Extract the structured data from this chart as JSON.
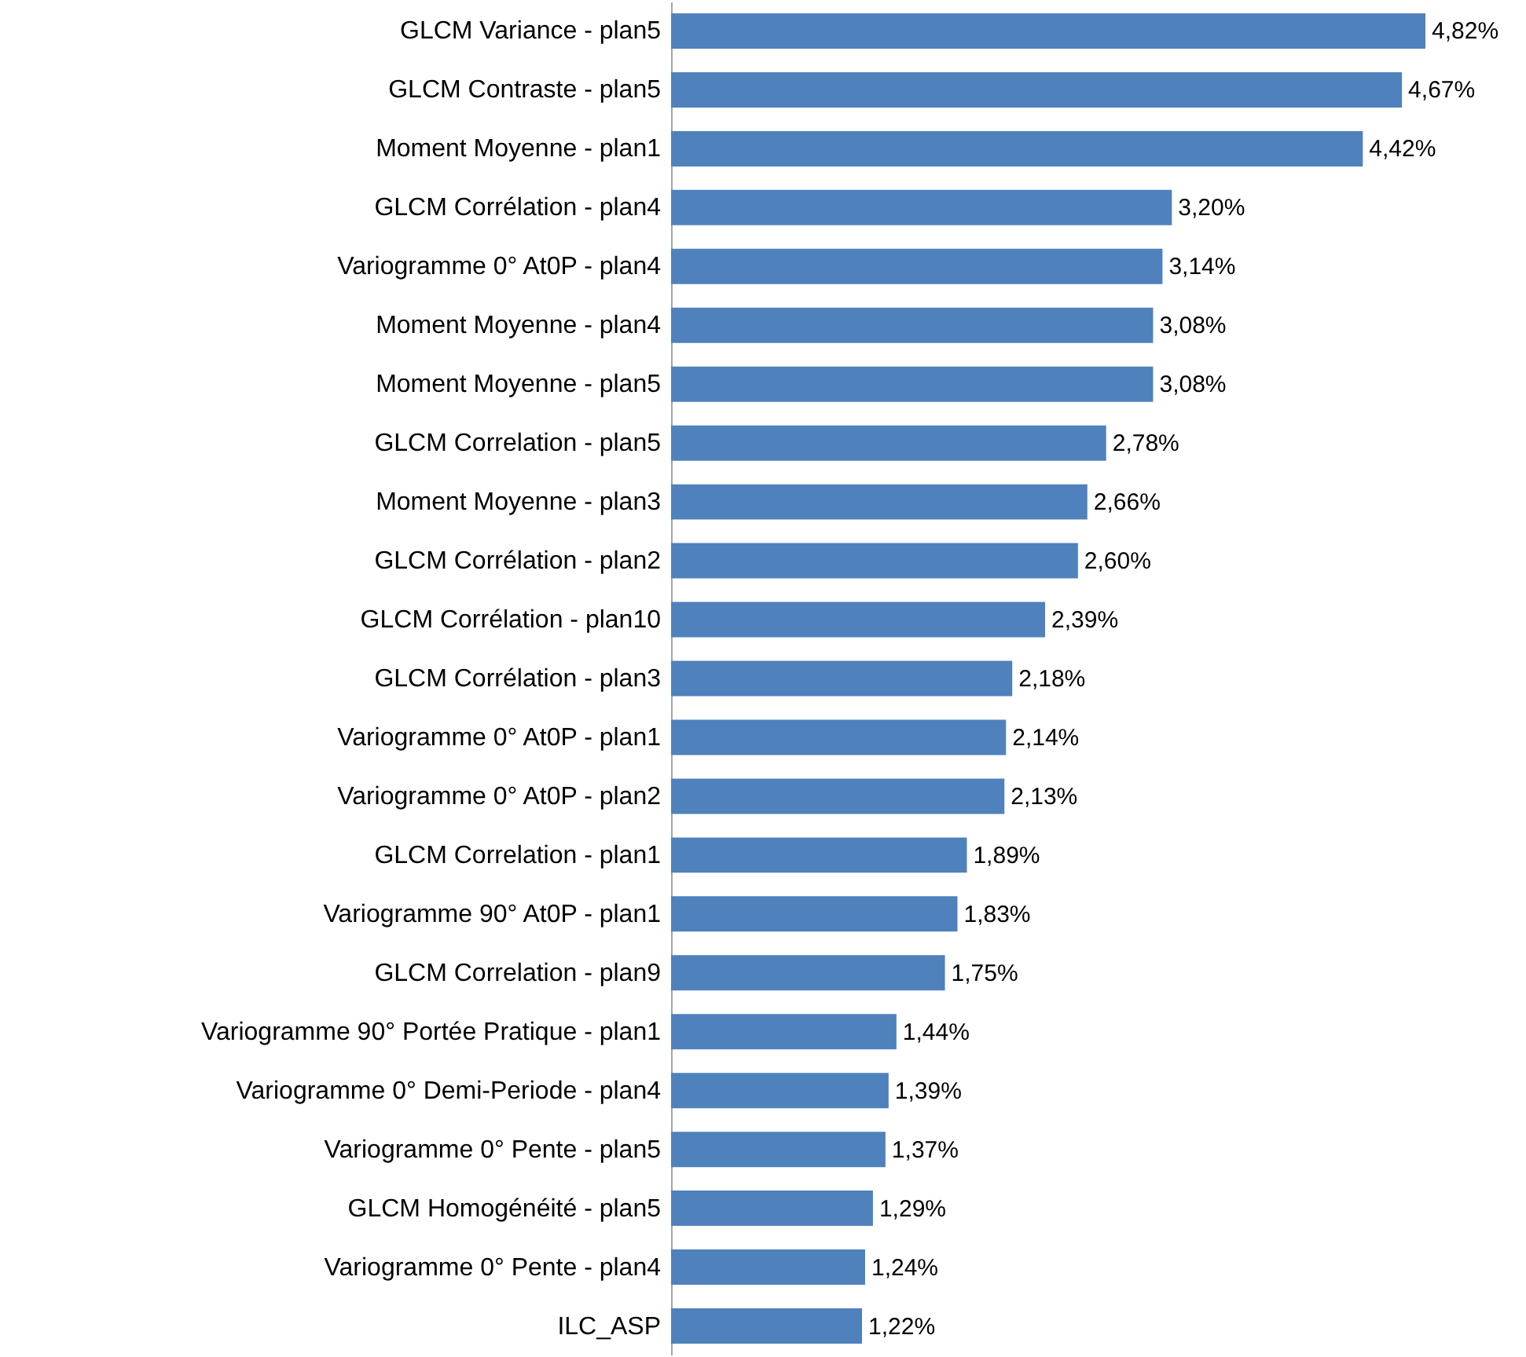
{
  "chart_data": {
    "type": "bar",
    "orientation": "horizontal",
    "color": "#4f81bd",
    "categories": [
      "GLCM Variance - plan5",
      "GLCM Contraste - plan5",
      "Moment Moyenne - plan1",
      "GLCM Corrélation - plan4",
      "Variogramme 0° At0P - plan4",
      "Moment Moyenne - plan4",
      "Moment Moyenne - plan5",
      "GLCM Correlation - plan5",
      "Moment Moyenne - plan3",
      "GLCM Corrélation - plan2",
      "GLCM Corrélation - plan10",
      "GLCM Corrélation - plan3",
      "Variogramme 0° At0P - plan1",
      "Variogramme 0° At0P - plan2",
      "GLCM Correlation - plan1",
      "Variogramme 90° At0P - plan1",
      "GLCM Correlation - plan9",
      "Variogramme 90° Portée Pratique - plan1",
      "Variogramme 0° Demi-Periode - plan4",
      "Variogramme 0° Pente - plan5",
      "GLCM Homogénéité - plan5",
      "Variogramme 0° Pente - plan4",
      "ILC_ASP"
    ],
    "values": [
      4.82,
      4.67,
      4.42,
      3.2,
      3.14,
      3.08,
      3.08,
      2.78,
      2.66,
      2.6,
      2.39,
      2.18,
      2.14,
      2.13,
      1.89,
      1.83,
      1.75,
      1.44,
      1.39,
      1.37,
      1.29,
      1.24,
      1.22
    ],
    "value_labels": [
      "4,82%",
      "4,67%",
      "4,42%",
      "3,20%",
      "3,14%",
      "3,08%",
      "3,08%",
      "2,78%",
      "2,66%",
      "2,60%",
      "2,39%",
      "2,18%",
      "2,14%",
      "2,13%",
      "1,89%",
      "1,83%",
      "1,75%",
      "1,44%",
      "1,39%",
      "1,37%",
      "1,29%",
      "1,24%",
      "1,22%"
    ]
  }
}
